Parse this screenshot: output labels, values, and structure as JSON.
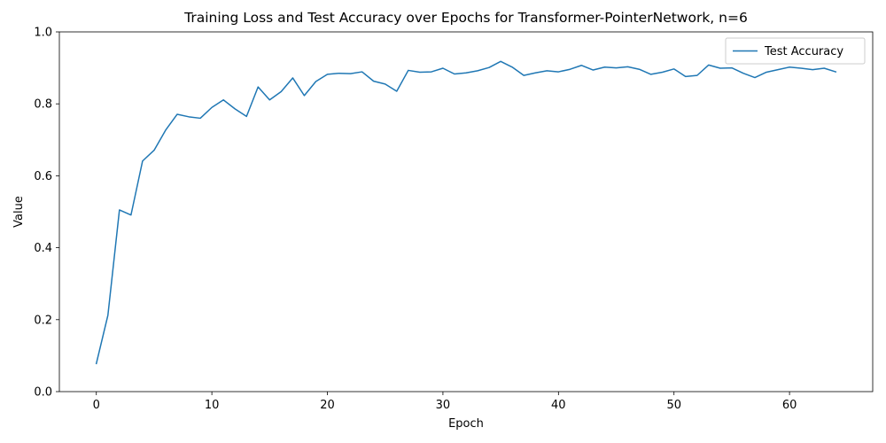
{
  "chart_data": {
    "type": "line",
    "title": "Training Loss and Test Accuracy over Epochs for Transformer-PointerNetwork, n=6",
    "xlabel": "Epoch",
    "ylabel": "Value",
    "xlim": [
      -3.2,
      67.2
    ],
    "ylim": [
      0,
      1
    ],
    "xticks": [
      0,
      10,
      20,
      30,
      40,
      50,
      60
    ],
    "yticks": [
      0.0,
      0.2,
      0.4,
      0.6,
      0.8,
      1.0
    ],
    "ytick_labels": [
      "0.0",
      "0.2",
      "0.4",
      "0.6",
      "0.8",
      "1.0"
    ],
    "grid": false,
    "legend_position": "top-right",
    "series": [
      {
        "name": "Test Accuracy",
        "color": "#1f77b4",
        "x": [
          0,
          1,
          2,
          3,
          4,
          5,
          6,
          7,
          8,
          9,
          10,
          11,
          12,
          13,
          14,
          15,
          16,
          17,
          18,
          19,
          20,
          21,
          22,
          23,
          24,
          25,
          26,
          27,
          28,
          29,
          30,
          31,
          32,
          33,
          34,
          35,
          36,
          37,
          38,
          39,
          40,
          41,
          42,
          43,
          44,
          45,
          46,
          47,
          48,
          49,
          50,
          51,
          52,
          53,
          54,
          55,
          56,
          57,
          58,
          59,
          60,
          61,
          62,
          63,
          64
        ],
        "values": [
          0.078,
          0.212,
          0.505,
          0.491,
          0.641,
          0.671,
          0.727,
          0.771,
          0.764,
          0.76,
          0.79,
          0.811,
          0.786,
          0.765,
          0.847,
          0.811,
          0.834,
          0.872,
          0.823,
          0.862,
          0.882,
          0.885,
          0.884,
          0.889,
          0.863,
          0.855,
          0.835,
          0.893,
          0.888,
          0.889,
          0.899,
          0.883,
          0.886,
          0.892,
          0.901,
          0.918,
          0.902,
          0.879,
          0.886,
          0.892,
          0.889,
          0.896,
          0.907,
          0.894,
          0.902,
          0.9,
          0.903,
          0.896,
          0.882,
          0.888,
          0.897,
          0.876,
          0.879,
          0.908,
          0.899,
          0.9,
          0.885,
          0.873,
          0.888,
          0.895,
          0.902,
          0.899,
          0.895,
          0.899,
          0.889
        ]
      }
    ]
  }
}
